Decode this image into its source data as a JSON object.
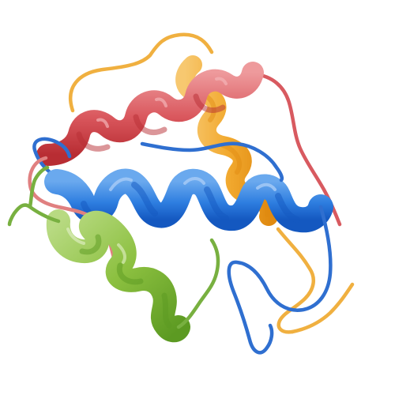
{
  "colors": {
    "background": "#ffffff",
    "helix_red": "#d9565c",
    "helix_red_dark": "#b82d33",
    "helix_red_light": "#e88f92",
    "helix_blue": "#2e7ee0",
    "helix_blue_dark": "#1458c0",
    "helix_blue_light": "#6aa9ee",
    "helix_orange": "#f2aa30",
    "helix_orange_dark": "#e08a10",
    "helix_orange_light": "#f7c870",
    "helix_green": "#8cc040",
    "helix_green_dark": "#5c9a22",
    "helix_green_light": "#b8da82",
    "coil_orange": "#f0b040",
    "coil_red": "#d85a60",
    "coil_blue": "#2f6fd0",
    "coil_green": "#78b040",
    "coil_pink": "#e08080"
  },
  "elements": [
    {
      "name": "red-helix",
      "kind": "alpha-helix",
      "color": "helix_red"
    },
    {
      "name": "orange-helix",
      "kind": "alpha-helix",
      "color": "helix_orange"
    },
    {
      "name": "blue-helix",
      "kind": "alpha-helix",
      "color": "helix_blue"
    },
    {
      "name": "green-helix",
      "kind": "alpha-helix",
      "color": "helix_green"
    }
  ]
}
